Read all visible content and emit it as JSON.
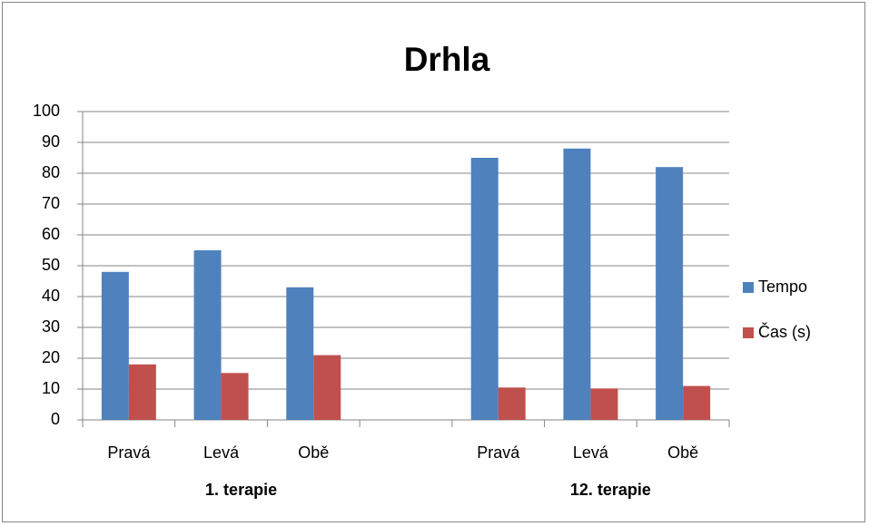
{
  "chart_data": {
    "type": "bar",
    "title": "Drhla",
    "categories": [
      "Pravá",
      "Levá",
      "Obě",
      null,
      "Pravá",
      "Levá",
      "Obě"
    ],
    "groups": [
      "1. terapie",
      "12. terapie"
    ],
    "series": [
      {
        "name": "Tempo",
        "color": "#4f81bd",
        "values": [
          48,
          55,
          43,
          null,
          85,
          88,
          82
        ]
      },
      {
        "name": "Čas (s)",
        "color": "#c0504d",
        "values": [
          18,
          15.2,
          21,
          null,
          10.5,
          10.2,
          11
        ]
      }
    ],
    "ylim": [
      0,
      100
    ],
    "yticks": [
      0,
      10,
      20,
      30,
      40,
      50,
      60,
      70,
      80,
      90,
      100
    ],
    "grid": true,
    "legend": "right"
  }
}
